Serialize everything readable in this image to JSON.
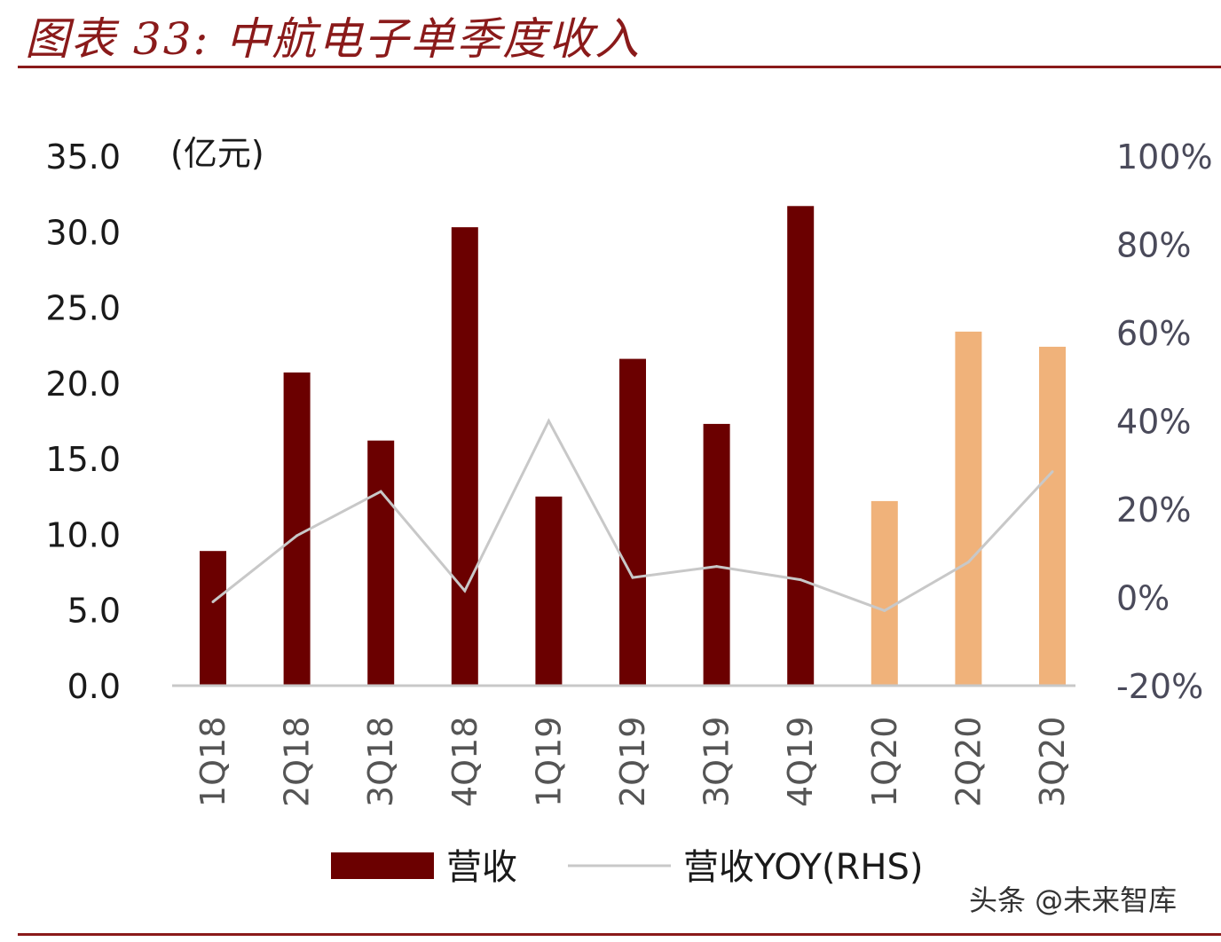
{
  "title": "图表 33:  中航电子单季度收入",
  "unit_label": "(亿元)",
  "watermark": "头条 @未来智库",
  "colors": {
    "actual_bar": "#6b0000",
    "forecast_bar": "#f0b27a",
    "yoy_line": "#c8c8c8",
    "rule": "#8a1a1a"
  },
  "chart_data": {
    "type": "bar",
    "categories": [
      "1Q18",
      "2Q18",
      "3Q18",
      "4Q18",
      "1Q19",
      "2Q19",
      "3Q19",
      "4Q19",
      "1Q20",
      "2Q20",
      "3Q20"
    ],
    "series": [
      {
        "name": "营收",
        "type": "bar",
        "axis": "left",
        "values": [
          8.9,
          20.7,
          16.2,
          30.3,
          12.5,
          21.6,
          17.3,
          31.7,
          12.2,
          23.4,
          22.4
        ],
        "highlight_from_index": 8
      },
      {
        "name": "营收YOY(RHS)",
        "type": "line",
        "axis": "right",
        "values": [
          -1.0,
          14.0,
          24.0,
          1.5,
          40.0,
          4.5,
          7.0,
          4.0,
          -3.0,
          8.0,
          28.5
        ]
      }
    ],
    "left_axis": {
      "ylim": [
        0,
        35
      ],
      "ticks": [
        "0.0",
        "5.0",
        "10.0",
        "15.0",
        "20.0",
        "25.0",
        "30.0",
        "35.0"
      ]
    },
    "right_axis": {
      "ylim": [
        -20,
        100
      ],
      "ticks": [
        "-20%",
        "0%",
        "20%",
        "40%",
        "60%",
        "80%",
        "100%"
      ]
    },
    "legend_placement": "bottom",
    "grid": false
  }
}
